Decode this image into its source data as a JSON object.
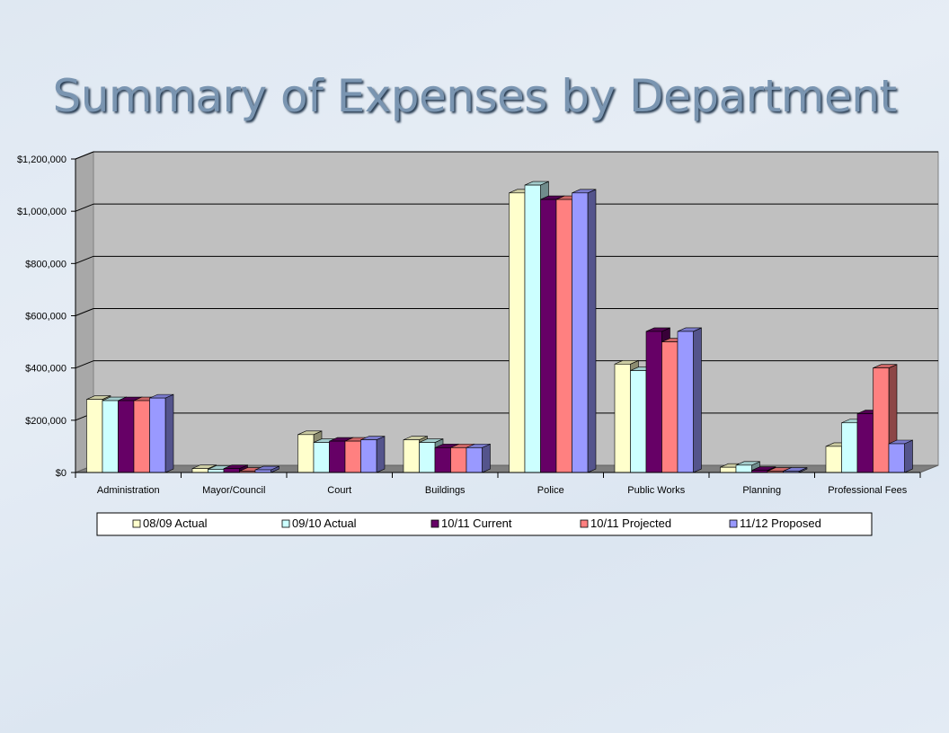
{
  "title": "Summary of Expenses by Department",
  "colors": {
    "series": [
      "#ffffcc",
      "#ccffff",
      "#660066",
      "#ff8080",
      "#9999ff"
    ],
    "plot_bg": "#c0c0c0",
    "title": "#7a95b1"
  },
  "chart_data": {
    "type": "bar",
    "title": "Summary of Expenses by Department",
    "xlabel": "",
    "ylabel": "",
    "ylim": [
      0,
      1200000
    ],
    "yticks": [
      0,
      200000,
      400000,
      600000,
      800000,
      1000000,
      1200000
    ],
    "ytick_labels": [
      "$0",
      "$200,000",
      "$400,000",
      "$600,000",
      "$800,000",
      "$1,000,000",
      "$1,200,000"
    ],
    "grid": true,
    "legend_position": "bottom",
    "categories": [
      "Administration",
      "Mayor/Council",
      "Court",
      "Buildings",
      "Police",
      "Public Works",
      "Planning",
      "Professional Fees"
    ],
    "series": [
      {
        "name": "08/09 Actual",
        "values": [
          280000,
          15000,
          145000,
          125000,
          1070000,
          415000,
          20000,
          100000
        ]
      },
      {
        "name": "09/10 Actual",
        "values": [
          275000,
          12000,
          115000,
          115000,
          1100000,
          390000,
          28000,
          190000
        ]
      },
      {
        "name": "10/11 Current",
        "values": [
          275000,
          15000,
          120000,
          95000,
          1045000,
          540000,
          8000,
          225000
        ]
      },
      {
        "name": "10/11 Projected",
        "values": [
          275000,
          5000,
          120000,
          95000,
          1045000,
          500000,
          5000,
          400000
        ]
      },
      {
        "name": "11/12 Proposed",
        "values": [
          285000,
          10000,
          125000,
          95000,
          1070000,
          540000,
          5000,
          110000
        ]
      }
    ]
  }
}
